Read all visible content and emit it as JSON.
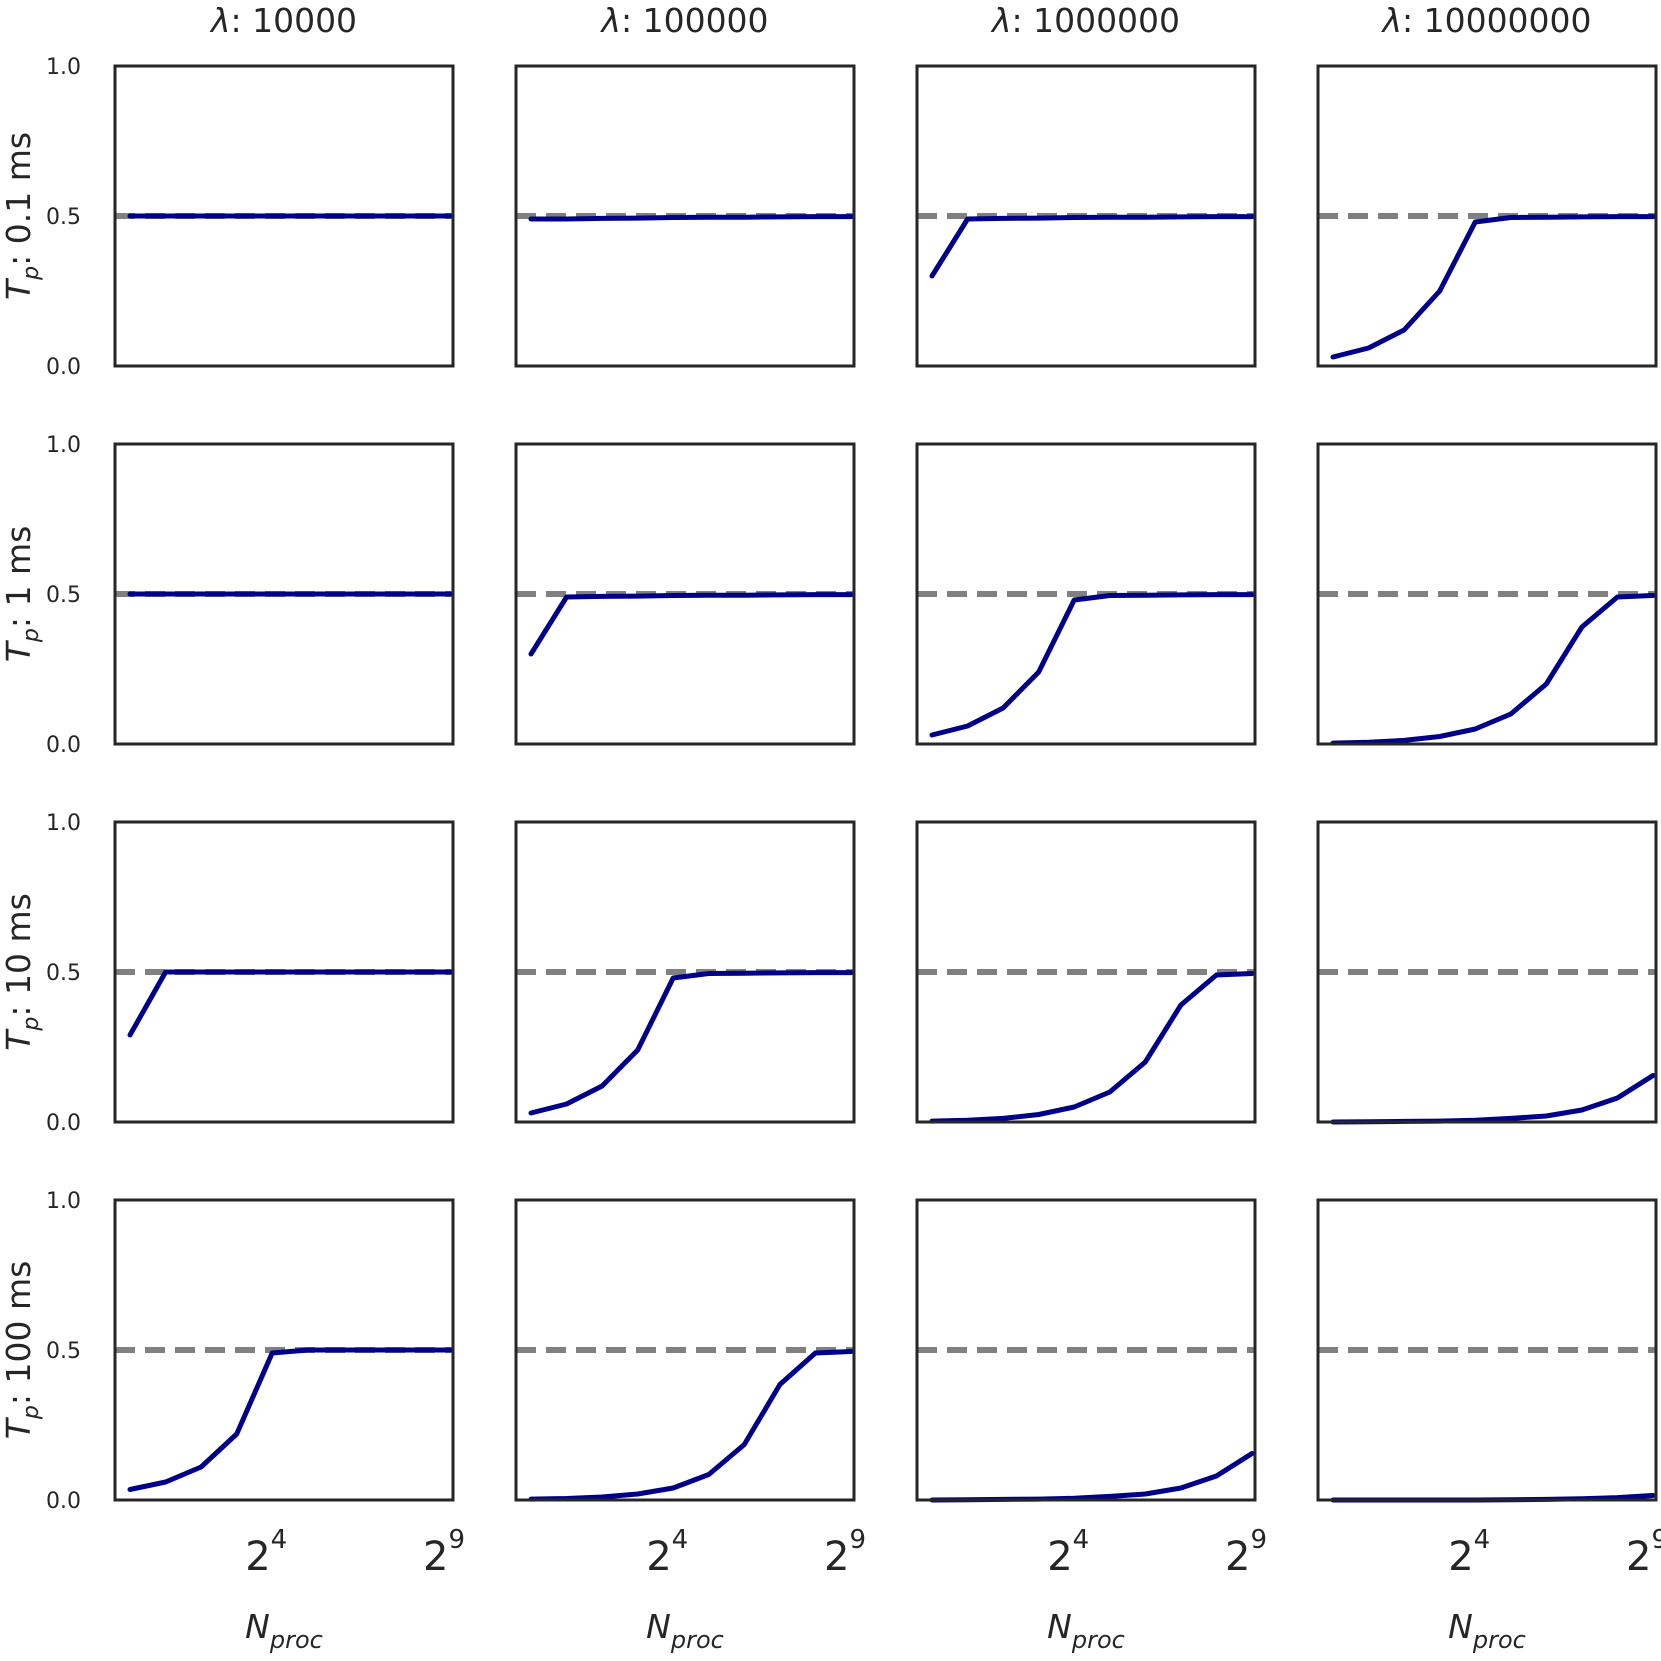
{
  "chart_data": {
    "type": "line",
    "grid": false,
    "x_scale": "log2",
    "xlim": [
      1,
      512
    ],
    "ylim": [
      0.0,
      1.0
    ],
    "x": [
      1,
      2,
      4,
      8,
      16,
      32,
      64,
      128,
      256,
      512
    ],
    "y_ticks": [
      "0.0",
      "0.5",
      "1.0"
    ],
    "x_ticks": [
      {
        "value": 16,
        "base": "2",
        "exp": "4"
      },
      {
        "value": 512,
        "base": "2",
        "exp": "9"
      }
    ],
    "xlabel": {
      "main": "N",
      "sub": "proc"
    },
    "reference_value": 0.5,
    "colors": {
      "series": "#00008b",
      "reference": "#808080",
      "frame": "#262626"
    },
    "columns": [
      {
        "sym": "λ",
        "text": ": 10000"
      },
      {
        "sym": "λ",
        "text": ": 100000"
      },
      {
        "sym": "λ",
        "text": ": 1000000"
      },
      {
        "sym": "λ",
        "text": ": 10000000"
      }
    ],
    "rows": [
      {
        "main": "T",
        "sub": "p",
        "text": ": 0.1 ms"
      },
      {
        "main": "T",
        "sub": "p",
        "text": ": 1 ms"
      },
      {
        "main": "T",
        "sub": "p",
        "text": ": 10 ms"
      },
      {
        "main": "T",
        "sub": "p",
        "text": ": 100 ms"
      }
    ],
    "panels": [
      [
        [
          0.5,
          0.5,
          0.5,
          0.5,
          0.5,
          0.5,
          0.5,
          0.5,
          0.5,
          0.5
        ],
        [
          0.49,
          0.49,
          0.492,
          0.493,
          0.495,
          0.496,
          0.496,
          0.497,
          0.498,
          0.498
        ],
        [
          0.3,
          0.49,
          0.492,
          0.493,
          0.495,
          0.496,
          0.496,
          0.497,
          0.498,
          0.498
        ],
        [
          0.03,
          0.06,
          0.12,
          0.25,
          0.48,
          0.495,
          0.496,
          0.497,
          0.498,
          0.498
        ]
      ],
      [
        [
          0.5,
          0.5,
          0.5,
          0.5,
          0.5,
          0.5,
          0.5,
          0.5,
          0.5,
          0.5
        ],
        [
          0.3,
          0.49,
          0.492,
          0.493,
          0.495,
          0.496,
          0.496,
          0.497,
          0.498,
          0.498
        ],
        [
          0.03,
          0.06,
          0.12,
          0.24,
          0.48,
          0.495,
          0.496,
          0.497,
          0.498,
          0.498
        ],
        [
          0.003,
          0.006,
          0.012,
          0.025,
          0.05,
          0.1,
          0.2,
          0.39,
          0.49,
          0.495
        ]
      ],
      [
        [
          0.29,
          0.5,
          0.5,
          0.5,
          0.5,
          0.5,
          0.5,
          0.5,
          0.5,
          0.5
        ],
        [
          0.03,
          0.06,
          0.12,
          0.24,
          0.48,
          0.495,
          0.496,
          0.497,
          0.498,
          0.498
        ],
        [
          0.003,
          0.006,
          0.012,
          0.025,
          0.05,
          0.1,
          0.2,
          0.39,
          0.49,
          0.495
        ],
        [
          0.0,
          0.001,
          0.002,
          0.003,
          0.006,
          0.012,
          0.02,
          0.04,
          0.08,
          0.155
        ]
      ],
      [
        [
          0.035,
          0.06,
          0.11,
          0.22,
          0.49,
          0.5,
          0.5,
          0.5,
          0.5,
          0.5
        ],
        [
          0.003,
          0.005,
          0.01,
          0.02,
          0.04,
          0.085,
          0.185,
          0.385,
          0.49,
          0.495
        ],
        [
          0.0,
          0.001,
          0.002,
          0.003,
          0.006,
          0.012,
          0.02,
          0.04,
          0.08,
          0.155
        ],
        [
          0.0,
          0.0,
          0.0,
          0.0,
          0.0,
          0.001,
          0.002,
          0.004,
          0.008,
          0.015
        ]
      ]
    ]
  }
}
